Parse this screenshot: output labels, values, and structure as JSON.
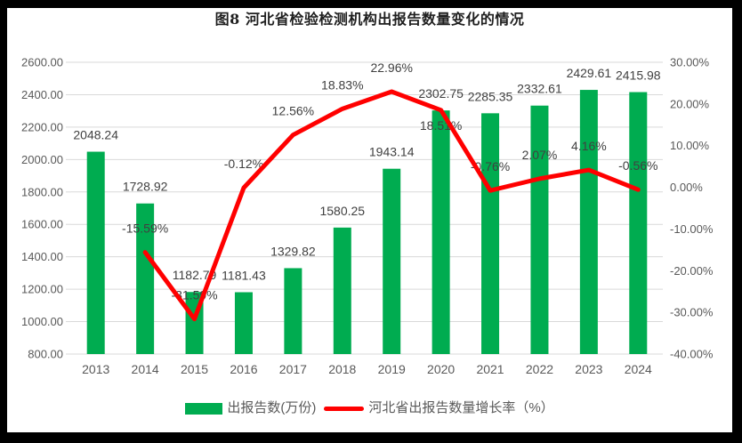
{
  "title": "图8 河北省检验检测机构出报告数量变化的情况",
  "colors": {
    "frame": "#000000",
    "background": "#FFFFFF",
    "bar": "#00AC50",
    "line": "#FF0000",
    "grid": "#D9D9D9",
    "axis_text": "#595959",
    "data_label_text": "#404040",
    "title_text": "#1F1F1F"
  },
  "legend": {
    "items": [
      {
        "label": "出报告数(万份)",
        "swatch": "bar-swatch"
      },
      {
        "label": "河北省出报告数量增长率（%）",
        "swatch": "line-swatch"
      }
    ]
  },
  "chart_data": {
    "type": "bar+line",
    "title": "图8 河北省检验检测机构出报告数量变化的情况",
    "categories": [
      "2013",
      "2014",
      "2015",
      "2016",
      "2017",
      "2018",
      "2019",
      "2020",
      "2021",
      "2022",
      "2023",
      "2024"
    ],
    "series": [
      {
        "name": "出报告数(万份)",
        "type": "bar",
        "axis": "left",
        "values": [
          2048.24,
          1728.92,
          1182.79,
          1181.43,
          1329.82,
          1580.25,
          1943.14,
          2302.75,
          2285.35,
          2332.61,
          2429.61,
          2415.98
        ],
        "labels": [
          "2048.24",
          "1728.92",
          "1182.79",
          "1181.43",
          "1329.82",
          "1580.25",
          "1943.14",
          "2302.75",
          "2285.35",
          "2332.61",
          "2429.61",
          "2415.98"
        ]
      },
      {
        "name": "河北省出报告数量增长率（%）",
        "type": "line",
        "axis": "right",
        "values": [
          null,
          -15.59,
          -31.59,
          -0.12,
          12.56,
          18.83,
          22.96,
          18.51,
          -0.76,
          2.07,
          4.16,
          -0.56
        ],
        "labels": [
          null,
          "-15.59%",
          "-31.59%",
          "-0.12%",
          "12.56%",
          "18.83%",
          "22.96%",
          "18.51%",
          "-0.76%",
          "2.07%",
          "4.16%",
          "-0.56%"
        ],
        "label_below_indices": [
          7
        ]
      }
    ],
    "left_axis": {
      "min": 800,
      "max": 2600,
      "ticks": [
        "2600.00",
        "2400.00",
        "2200.00",
        "2000.00",
        "1800.00",
        "1600.00",
        "1400.00",
        "1200.00",
        "1000.00",
        "800.00"
      ],
      "tick_values": [
        2600,
        2400,
        2200,
        2000,
        1800,
        1600,
        1400,
        1200,
        1000,
        800
      ]
    },
    "right_axis": {
      "min": -40,
      "max": 30,
      "ticks": [
        "30.00%",
        "20.00%",
        "10.00%",
        "0.00%",
        "-10.00%",
        "-20.00%",
        "-30.00%",
        "-40.00%"
      ],
      "tick_values": [
        30,
        20,
        10,
        0,
        -10,
        -20,
        -30,
        -40
      ]
    },
    "grid": true,
    "legend_position": "bottom"
  }
}
